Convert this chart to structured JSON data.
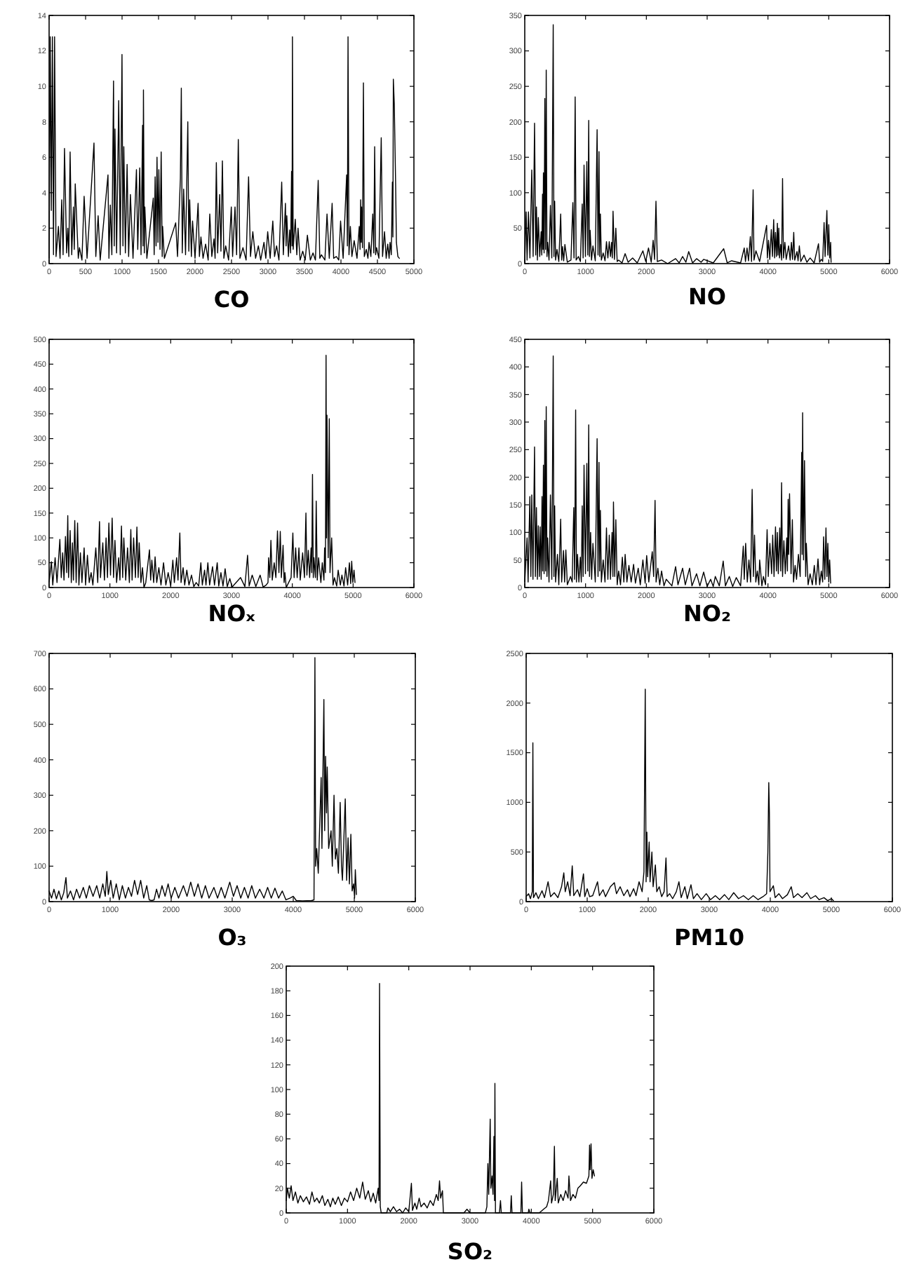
{
  "chart_data": [
    {
      "type": "line",
      "title": "CO",
      "color": "#000000",
      "xlim": [
        0,
        5000
      ],
      "xticks": [
        0,
        500,
        1000,
        1500,
        2000,
        2500,
        3000,
        3500,
        4000,
        4500,
        5000
      ],
      "ylim": [
        0,
        14
      ],
      "yticks": [
        0,
        2,
        4,
        6,
        8,
        10,
        12,
        14
      ],
      "x": [
        0,
        15,
        30,
        45,
        60,
        75,
        95,
        128,
        150,
        173,
        192,
        211,
        240,
        256,
        270,
        288,
        310,
        333,
        345,
        358,
        400,
        416,
        450,
        480,
        520,
        615,
        640,
        672,
        700,
        807,
        820,
        839,
        860,
        883,
        893,
        903,
        925,
        954,
        975,
        999,
        1012,
        1024,
        1045,
        1069,
        1090,
        1114,
        1150,
        1197,
        1215,
        1242,
        1260,
        1281,
        1287,
        1293,
        1305,
        1312,
        1340,
        1428,
        1440,
        1453,
        1466,
        1479,
        1492,
        1504,
        1520,
        1536,
        1550,
        1556,
        1580,
        1735,
        1760,
        1799,
        1812,
        1825,
        1844,
        1870,
        1901,
        1915,
        1927,
        1950,
        1966,
        2000,
        2042,
        2060,
        2081,
        2110,
        2145,
        2180,
        2202,
        2230,
        2260,
        2275,
        2292,
        2310,
        2337,
        2355,
        2375,
        2395,
        2420,
        2460,
        2497,
        2515,
        2548,
        2570,
        2593,
        2615,
        2657,
        2700,
        2734,
        2760,
        2792,
        2830,
        2868,
        2900,
        2945,
        2970,
        2996,
        3030,
        3066,
        3090,
        3118,
        3150,
        3188,
        3210,
        3239,
        3248,
        3258,
        3280,
        3297,
        3310,
        3323,
        3330,
        3335,
        3345,
        3374,
        3395,
        3412,
        3440,
        3476,
        3510,
        3540,
        3580,
        3617,
        3650,
        3688,
        3710,
        3732,
        3780,
        3809,
        3840,
        3879,
        3900,
        3937,
        3970,
        3995,
        4030,
        4078,
        4088,
        4097,
        4110,
        4129,
        4150,
        4181,
        4220,
        4251,
        4262,
        4270,
        4278,
        4283,
        4295,
        4308,
        4320,
        4347,
        4370,
        4385,
        4410,
        4436,
        4450,
        4462,
        4475,
        4488,
        4520,
        4552,
        4570,
        4597,
        4620,
        4641,
        4660,
        4673,
        4690,
        4705,
        4712,
        4718,
        4731,
        4750,
        4760,
        4780,
        4800
      ],
      "values": [
        0.3,
        12.8,
        3.0,
        12.8,
        0.5,
        12.8,
        0.4,
        2.1,
        0.3,
        3.6,
        0.5,
        6.5,
        0.6,
        2.0,
        0.4,
        6.3,
        0.5,
        3.2,
        0.8,
        4.5,
        0.3,
        0.9,
        0.2,
        3.8,
        0.3,
        6.8,
        0.4,
        2.7,
        0.2,
        5.0,
        0.3,
        3.3,
        0.5,
        10.3,
        1.0,
        7.6,
        0.6,
        9.2,
        0.5,
        11.8,
        1.0,
        6.6,
        0.6,
        5.6,
        0.4,
        3.9,
        0.3,
        5.3,
        0.8,
        5.4,
        0.5,
        7.8,
        1.0,
        9.8,
        0.6,
        3.2,
        0.3,
        3.7,
        0.5,
        4.9,
        1.0,
        6.0,
        1.2,
        5.3,
        0.8,
        6.3,
        0.4,
        2.1,
        0.3,
        2.3,
        0.4,
        4.8,
        9.9,
        0.6,
        4.2,
        0.5,
        8.0,
        0.7,
        3.6,
        0.4,
        2.4,
        0.3,
        3.4,
        0.4,
        1.5,
        0.3,
        1.1,
        0.2,
        2.8,
        0.4,
        1.4,
        0.3,
        5.7,
        0.6,
        3.9,
        0.7,
        5.8,
        0.3,
        1.0,
        0.2,
        3.2,
        0.4,
        3.2,
        0.5,
        7.0,
        0.3,
        0.9,
        0.2,
        4.9,
        0.4,
        1.8,
        0.3,
        1.0,
        0.2,
        1.2,
        0.3,
        1.8,
        0.3,
        2.4,
        0.4,
        1.0,
        0.2,
        4.6,
        0.5,
        3.4,
        1.0,
        2.7,
        0.4,
        1.9,
        0.6,
        5.2,
        1.0,
        12.8,
        0.8,
        2.5,
        0.5,
        2.0,
        0.2,
        0.7,
        0.2,
        1.6,
        0.2,
        0.6,
        0.2,
        4.7,
        0.3,
        0.5,
        0.2,
        2.8,
        0.3,
        3.4,
        0.3,
        0.4,
        0.2,
        2.4,
        0.3,
        5.0,
        1.0,
        12.8,
        0.5,
        2.1,
        0.4,
        1.3,
        0.3,
        2.1,
        0.8,
        3.6,
        1.2,
        3.2,
        0.9,
        10.2,
        0.4,
        0.8,
        0.3,
        1.2,
        0.4,
        2.8,
        0.6,
        6.6,
        0.5,
        0.9,
        0.3,
        7.1,
        0.4,
        1.8,
        0.3,
        1.1,
        0.3,
        1.2,
        0.5,
        4.6,
        1.5,
        10.4,
        9.0,
        4.3,
        1.2,
        0.4,
        0.3
      ]
    },
    {
      "type": "line",
      "title": "NO",
      "color": "#000000",
      "xlim": [
        0,
        6000
      ],
      "xticks": [
        0,
        1000,
        2000,
        3000,
        4000,
        5000,
        6000
      ],
      "ylim": [
        0,
        350
      ],
      "yticks": [
        0,
        50,
        100,
        150,
        200,
        250,
        300,
        350
      ],
      "x": [
        0,
        23,
        38,
        61,
        85,
        115,
        138,
        161,
        180,
        192,
        208,
        223,
        246,
        269,
        280,
        292,
        300,
        307,
        318,
        330,
        342,
        353,
        365,
        376,
        399,
        422,
        445,
        468,
        480,
        492,
        507,
        530,
        560,
        591,
        607,
        622,
        640,
        660,
        700,
        760,
        791,
        810,
        829,
        845,
        883,
        915,
        945,
        960,
        975,
        998,
        1021,
        1037,
        1052,
        1064,
        1075,
        1098,
        1121,
        1160,
        1190,
        1205,
        1221,
        1232,
        1244,
        1260,
        1290,
        1320,
        1344,
        1367,
        1390,
        1410,
        1429,
        1440,
        1452,
        1475,
        1498,
        1520,
        1544,
        1600,
        1651,
        1700,
        1774,
        1850,
        1943,
        1990,
        2035,
        2080,
        2112,
        2135,
        2158,
        2180,
        2250,
        2350,
        2481,
        2540,
        2596,
        2650,
        2696,
        2760,
        2826,
        2900,
        2942,
        3100,
        3272,
        3330,
        3402,
        3550,
        3610,
        3630,
        3656,
        3680,
        3710,
        3730,
        3756,
        3770,
        3802,
        3863,
        3978,
        3990,
        4009,
        4030,
        4055,
        4075,
        4094,
        4110,
        4124,
        4140,
        4155,
        4165,
        4178,
        4190,
        4209,
        4225,
        4240,
        4255,
        4278,
        4300,
        4340,
        4365,
        4386,
        4405,
        4424,
        4440,
        4478,
        4495,
        4516,
        4540,
        4593,
        4640,
        4693,
        4760,
        4831,
        4850,
        4877,
        4900,
        4923,
        4940,
        4969,
        4985,
        5000,
        5015,
        5031,
        5038
      ],
      "values": [
        2,
        73,
        5,
        73,
        8,
        132,
        10,
        198,
        12,
        80,
        5,
        65,
        10,
        45,
        12,
        98,
        20,
        128,
        15,
        233,
        20,
        273,
        10,
        30,
        5,
        82,
        8,
        337,
        10,
        88,
        5,
        20,
        3,
        70,
        5,
        24,
        4,
        27,
        2,
        5,
        86,
        8,
        235,
        5,
        10,
        3,
        84,
        8,
        139,
        10,
        144,
        12,
        202,
        10,
        47,
        5,
        25,
        4,
        189,
        12,
        158,
        10,
        70,
        5,
        15,
        4,
        31,
        8,
        31,
        10,
        30,
        8,
        74,
        6,
        50,
        3,
        5,
        1,
        14,
        2,
        8,
        1,
        18,
        3,
        22,
        2,
        33,
        6,
        88,
        3,
        5,
        0,
        7,
        1,
        10,
        2,
        17,
        1,
        7,
        2,
        6,
        1,
        21,
        1,
        4,
        1,
        22,
        3,
        22,
        4,
        38,
        3,
        104,
        5,
        18,
        3,
        54,
        8,
        33,
        6,
        48,
        10,
        62,
        8,
        44,
        10,
        57,
        12,
        50,
        8,
        27,
        5,
        120,
        8,
        30,
        6,
        25,
        5,
        30,
        6,
        44,
        5,
        17,
        4,
        25,
        3,
        12,
        2,
        8,
        1,
        28,
        2,
        6,
        3,
        58,
        10,
        75,
        12,
        55,
        8,
        30,
        2
      ]
    },
    {
      "type": "line",
      "title": "NOₓ",
      "color": "#000000",
      "xlim": [
        0,
        6000
      ],
      "xticks": [
        0,
        1000,
        2000,
        3000,
        4000,
        5000,
        6000
      ],
      "ylim": [
        0,
        500
      ],
      "yticks": [
        0,
        50,
        100,
        150,
        200,
        250,
        300,
        350,
        400,
        450,
        500
      ],
      "x": [
        0,
        38,
        60,
        99,
        130,
        177,
        200,
        223,
        245,
        269,
        290,
        307,
        320,
        346,
        365,
        384,
        400,
        422,
        445,
        468,
        490,
        515,
        540,
        576,
        600,
        630,
        660,
        691,
        720,
        768,
        800,
        829,
        845,
        883,
        910,
        937,
        960,
        983,
        1010,
        1037,
        1060,
        1083,
        1110,
        1144,
        1165,
        1190,
        1210,
        1229,
        1260,
        1290,
        1320,
        1344,
        1365,
        1390,
        1420,
        1444,
        1465,
        1482,
        1510,
        1536,
        1560,
        1590,
        1651,
        1670,
        1690,
        1720,
        1743,
        1770,
        1805,
        1840,
        1882,
        1920,
        1958,
        2000,
        2035,
        2060,
        2097,
        2120,
        2150,
        2170,
        2204,
        2230,
        2265,
        2300,
        2342,
        2380,
        2419,
        2460,
        2496,
        2520,
        2557,
        2580,
        2611,
        2640,
        2688,
        2720,
        2765,
        2790,
        2826,
        2860,
        2895,
        2930,
        2972,
        3010,
        3149,
        3220,
        3264,
        3290,
        3340,
        3400,
        3471,
        3520,
        3571,
        3600,
        3610,
        3630,
        3648,
        3670,
        3702,
        3730,
        3756,
        3780,
        3802,
        3820,
        3848,
        3865,
        3879,
        3900,
        3940,
        3980,
        4009,
        4030,
        4055,
        4080,
        4109,
        4130,
        4170,
        4200,
        4224,
        4240,
        4263,
        4285,
        4309,
        4320,
        4332,
        4345,
        4355,
        4380,
        4393,
        4410,
        4432,
        4470,
        4493,
        4520,
        4531,
        4545,
        4555,
        4562,
        4570,
        4590,
        4608,
        4620,
        4647,
        4670,
        4693,
        4730,
        4754,
        4790,
        4816,
        4850,
        4877,
        4910,
        4939,
        4960,
        4977,
        4995,
        5015,
        5031
      ],
      "values": [
        10,
        52,
        5,
        60,
        10,
        97,
        20,
        70,
        15,
        103,
        30,
        145,
        20,
        115,
        10,
        90,
        15,
        135,
        10,
        130,
        5,
        70,
        10,
        80,
        5,
        65,
        10,
        30,
        5,
        80,
        10,
        133,
        20,
        90,
        15,
        100,
        20,
        130,
        25,
        140,
        20,
        95,
        10,
        60,
        15,
        124,
        20,
        100,
        15,
        80,
        10,
        117,
        15,
        100,
        20,
        122,
        20,
        90,
        10,
        40,
        0,
        10,
        76,
        15,
        55,
        10,
        62,
        10,
        40,
        5,
        50,
        5,
        30,
        3,
        55,
        10,
        60,
        15,
        110,
        10,
        40,
        5,
        35,
        5,
        25,
        2,
        10,
        3,
        50,
        5,
        35,
        5,
        50,
        5,
        42,
        5,
        50,
        3,
        30,
        3,
        38,
        2,
        18,
        1,
        20,
        2,
        65,
        3,
        25,
        2,
        25,
        1,
        5,
        10,
        60,
        20,
        95,
        15,
        50,
        20,
        114,
        30,
        113,
        20,
        85,
        10,
        30,
        0,
        10,
        20,
        110,
        20,
        80,
        20,
        80,
        15,
        70,
        20,
        150,
        25,
        75,
        20,
        80,
        30,
        228,
        20,
        60,
        20,
        174,
        15,
        60,
        10,
        50,
        15,
        80,
        30,
        468,
        100,
        347,
        60,
        340,
        30,
        100,
        5,
        20,
        3,
        35,
        5,
        25,
        3,
        40,
        5,
        50,
        8,
        53,
        10,
        35,
        10
      ]
    },
    {
      "type": "line",
      "title": "NO₂",
      "color": "#000000",
      "xlim": [
        0,
        6000
      ],
      "xticks": [
        0,
        1000,
        2000,
        3000,
        4000,
        5000,
        6000
      ],
      "ylim": [
        0,
        450
      ],
      "yticks": [
        0,
        50,
        100,
        150,
        200,
        250,
        300,
        350,
        400,
        450
      ],
      "x": [
        0,
        38,
        55,
        84,
        100,
        115,
        135,
        161,
        175,
        192,
        208,
        223,
        240,
        253,
        270,
        284,
        295,
        307,
        318,
        330,
        342,
        353,
        365,
        376,
        399,
        422,
        445,
        468,
        480,
        492,
        507,
        538,
        560,
        591,
        607,
        637,
        655,
        676,
        700,
        753,
        780,
        806,
        820,
        837,
        850,
        868,
        890,
        914,
        930,
        945,
        960,
        975,
        998,
        1021,
        1037,
        1052,
        1065,
        1083,
        1100,
        1121,
        1160,
        1190,
        1205,
        1221,
        1232,
        1244,
        1260,
        1290,
        1320,
        1344,
        1367,
        1390,
        1410,
        1436,
        1450,
        1459,
        1480,
        1498,
        1520,
        1544,
        1575,
        1605,
        1630,
        1651,
        1680,
        1713,
        1750,
        1790,
        1820,
        1866,
        1900,
        1943,
        1980,
        2005,
        2040,
        2097,
        2120,
        2143,
        2160,
        2189,
        2220,
        2250,
        2290,
        2327,
        2420,
        2481,
        2520,
        2596,
        2640,
        2711,
        2750,
        2826,
        2880,
        2942,
        3000,
        3057,
        3100,
        3134,
        3200,
        3264,
        3300,
        3364,
        3420,
        3479,
        3550,
        3594,
        3610,
        3633,
        3660,
        3687,
        3715,
        3740,
        3760,
        3779,
        3800,
        3825,
        3850,
        3863,
        3900,
        3925,
        3960,
        3986,
        4005,
        4032,
        4060,
        4078,
        4100,
        4124,
        4140,
        4155,
        4170,
        4194,
        4210,
        4224,
        4240,
        4262,
        4285,
        4309,
        4320,
        4332,
        4340,
        4355,
        4380,
        4401,
        4420,
        4447,
        4470,
        4501,
        4530,
        4555,
        4562,
        4570,
        4585,
        4601,
        4620,
        4631,
        4660,
        4693,
        4730,
        4762,
        4790,
        4823,
        4850,
        4877,
        4900,
        4915,
        4935,
        4954,
        4970,
        4985,
        5000,
        5015,
        5031
      ],
      "values": [
        10,
        90,
        10,
        165,
        20,
        168,
        15,
        255,
        20,
        145,
        15,
        112,
        20,
        110,
        15,
        165,
        30,
        222,
        25,
        303,
        30,
        328,
        20,
        90,
        10,
        168,
        15,
        420,
        20,
        148,
        10,
        60,
        5,
        124,
        10,
        67,
        10,
        68,
        5,
        20,
        10,
        145,
        15,
        322,
        10,
        60,
        10,
        55,
        10,
        148,
        20,
        222,
        25,
        225,
        30,
        295,
        20,
        100,
        15,
        80,
        10,
        270,
        20,
        227,
        30,
        140,
        10,
        50,
        10,
        108,
        15,
        95,
        15,
        100,
        20,
        155,
        20,
        123,
        5,
        30,
        5,
        55,
        10,
        60,
        10,
        40,
        10,
        42,
        8,
        35,
        5,
        50,
        8,
        58,
        10,
        65,
        20,
        158,
        10,
        35,
        5,
        30,
        3,
        15,
        3,
        38,
        5,
        35,
        5,
        35,
        3,
        25,
        3,
        28,
        2,
        15,
        2,
        20,
        3,
        48,
        3,
        20,
        2,
        18,
        3,
        75,
        15,
        80,
        10,
        50,
        10,
        178,
        20,
        95,
        10,
        30,
        5,
        50,
        3,
        20,
        5,
        105,
        20,
        80,
        25,
        95,
        20,
        110,
        30,
        100,
        25,
        108,
        30,
        190,
        20,
        85,
        25,
        90,
        30,
        160,
        60,
        170,
        25,
        123,
        10,
        40,
        15,
        60,
        20,
        245,
        60,
        317,
        50,
        230,
        20,
        80,
        5,
        25,
        5,
        40,
        5,
        52,
        5,
        30,
        10,
        92,
        15,
        108,
        20,
        80,
        10,
        50,
        8
      ]
    },
    {
      "type": "line",
      "title": "O₃",
      "color": "#000000",
      "xlim": [
        0,
        6000
      ],
      "xticks": [
        0,
        1000,
        2000,
        3000,
        4000,
        5000,
        6000
      ],
      "ylim": [
        0,
        700
      ],
      "yticks": [
        0,
        100,
        200,
        300,
        400,
        500,
        600,
        700
      ],
      "x": [
        0,
        40,
        80,
        120,
        160,
        200,
        240,
        276,
        300,
        350,
        400,
        450,
        500,
        560,
        610,
        660,
        720,
        780,
        830,
        880,
        920,
        946,
        970,
        1010,
        1050,
        1100,
        1150,
        1200,
        1250,
        1300,
        1350,
        1400,
        1450,
        1500,
        1550,
        1600,
        1640,
        1680,
        1720,
        1760,
        1800,
        1850,
        1900,
        1950,
        2000,
        2060,
        2120,
        2200,
        2260,
        2320,
        2380,
        2440,
        2500,
        2560,
        2620,
        2700,
        2760,
        2820,
        2880,
        2960,
        3020,
        3080,
        3140,
        3200,
        3260,
        3320,
        3380,
        3450,
        3520,
        3580,
        3640,
        3700,
        3760,
        3820,
        3880,
        3950,
        4000,
        4050,
        4150,
        4300,
        4340,
        4355,
        4367,
        4385,
        4410,
        4457,
        4470,
        4502,
        4515,
        4530,
        4545,
        4557,
        4580,
        4620,
        4640,
        4668,
        4690,
        4714,
        4740,
        4769,
        4790,
        4806,
        4852,
        4875,
        4898,
        4920,
        4944,
        4965,
        4989,
        5005,
        5017,
        5035
      ],
      "values": [
        30,
        10,
        35,
        8,
        30,
        5,
        25,
        68,
        10,
        30,
        5,
        35,
        10,
        40,
        10,
        45,
        15,
        45,
        10,
        50,
        15,
        85,
        20,
        60,
        10,
        50,
        5,
        45,
        10,
        40,
        15,
        60,
        20,
        60,
        10,
        45,
        5,
        3,
        5,
        35,
        10,
        45,
        15,
        50,
        10,
        40,
        10,
        45,
        15,
        55,
        15,
        50,
        10,
        45,
        10,
        40,
        10,
        40,
        10,
        55,
        15,
        45,
        10,
        40,
        10,
        45,
        10,
        35,
        10,
        40,
        10,
        38,
        10,
        30,
        5,
        10,
        15,
        3,
        2,
        3,
        5,
        688,
        100,
        150,
        80,
        350,
        150,
        570,
        200,
        410,
        250,
        380,
        150,
        200,
        100,
        300,
        120,
        150,
        80,
        280,
        100,
        60,
        290,
        60,
        180,
        50,
        190,
        30,
        50,
        10,
        90,
        20
      ]
    },
    {
      "type": "line",
      "title": "PM10",
      "color": "#000000",
      "xlim": [
        0,
        6000
      ],
      "xticks": [
        0,
        1000,
        2000,
        3000,
        4000,
        5000,
        6000
      ],
      "ylim": [
        0,
        2500
      ],
      "yticks": [
        0,
        500,
        1000,
        1500,
        2000,
        2500
      ],
      "x": [
        0,
        40,
        70,
        100,
        110,
        120,
        160,
        200,
        260,
        300,
        359,
        400,
        460,
        520,
        580,
        617,
        640,
        680,
        720,
        755,
        780,
        840,
        880,
        939,
        960,
        1000,
        1040,
        1090,
        1169,
        1200,
        1260,
        1300,
        1380,
        1445,
        1480,
        1540,
        1600,
        1660,
        1700,
        1760,
        1800,
        1850,
        1900,
        1930,
        1951,
        1965,
        1978,
        1990,
        2015,
        2030,
        2060,
        2080,
        2117,
        2140,
        2180,
        2220,
        2260,
        2291,
        2310,
        2350,
        2400,
        2460,
        2503,
        2540,
        2600,
        2640,
        2700,
        2740,
        2800,
        2870,
        2950,
        3020,
        3100,
        3170,
        3250,
        3320,
        3400,
        3480,
        3560,
        3640,
        3720,
        3800,
        3880,
        3940,
        3960,
        3975,
        3985,
        3995,
        4050,
        4080,
        4140,
        4200,
        4280,
        4343,
        4380,
        4450,
        4520,
        4600,
        4660,
        4740,
        4800,
        4880,
        4940,
        5000,
        5033
      ],
      "values": [
        50,
        80,
        30,
        100,
        1600,
        40,
        90,
        30,
        110,
        40,
        200,
        50,
        90,
        40,
        150,
        290,
        100,
        200,
        60,
        360,
        60,
        120,
        50,
        280,
        50,
        130,
        50,
        60,
        200,
        60,
        120,
        50,
        150,
        190,
        80,
        150,
        60,
        120,
        50,
        130,
        60,
        200,
        100,
        300,
        2140,
        200,
        700,
        250,
        600,
        200,
        500,
        150,
        370,
        100,
        150,
        50,
        100,
        440,
        50,
        80,
        30,
        100,
        200,
        40,
        150,
        30,
        170,
        30,
        80,
        20,
        80,
        20,
        60,
        20,
        70,
        20,
        90,
        30,
        60,
        20,
        60,
        20,
        50,
        80,
        500,
        1200,
        900,
        100,
        160,
        40,
        80,
        30,
        70,
        150,
        40,
        80,
        40,
        90,
        30,
        60,
        20,
        40,
        10,
        30,
        10
      ]
    },
    {
      "type": "line",
      "title": "SO₂",
      "color": "#000000",
      "xlim": [
        0,
        6000
      ],
      "xticks": [
        0,
        1000,
        2000,
        3000,
        4000,
        5000,
        6000
      ],
      "ylim": [
        0,
        200
      ],
      "yticks": [
        0,
        20,
        40,
        60,
        80,
        100,
        120,
        140,
        160,
        180,
        200
      ],
      "x": [
        0,
        20,
        50,
        80,
        110,
        150,
        190,
        230,
        280,
        330,
        380,
        420,
        460,
        500,
        540,
        590,
        630,
        680,
        720,
        760,
        800,
        850,
        900,
        950,
        1000,
        1050,
        1100,
        1150,
        1200,
        1247,
        1290,
        1340,
        1380,
        1420,
        1460,
        1500,
        1515,
        1523,
        1535,
        1550,
        1640,
        1660,
        1700,
        1750,
        1800,
        1850,
        1900,
        1950,
        2000,
        2043,
        2060,
        2100,
        2130,
        2170,
        2200,
        2250,
        2300,
        2350,
        2400,
        2450,
        2480,
        2502,
        2520,
        2550,
        2565,
        2900,
        2950,
        3000,
        3250,
        3275,
        3291,
        3305,
        3329,
        3340,
        3360,
        3375,
        3390,
        3400,
        3406,
        3415,
        3480,
        3497,
        3510,
        3660,
        3673,
        3685,
        3830,
        3842,
        3855,
        3950,
        3960,
        3980,
        4130,
        4200,
        4250,
        4280,
        4316,
        4330,
        4360,
        4377,
        4390,
        4423,
        4440,
        4480,
        4520,
        4560,
        4600,
        4614,
        4640,
        4680,
        4720,
        4760,
        4800,
        4850,
        4900,
        4940,
        4951,
        4960,
        4975,
        4990,
        5010,
        5030
      ],
      "values": [
        10,
        20,
        12,
        22,
        10,
        17,
        8,
        14,
        9,
        13,
        7,
        17,
        9,
        12,
        8,
        14,
        6,
        11,
        5,
        12,
        7,
        13,
        6,
        12,
        9,
        17,
        10,
        20,
        12,
        25,
        11,
        18,
        9,
        16,
        8,
        20,
        10,
        186,
        5,
        0,
        0,
        4,
        1,
        5,
        1,
        3,
        0,
        4,
        1,
        24,
        2,
        8,
        3,
        12,
        5,
        8,
        4,
        10,
        6,
        15,
        10,
        26,
        12,
        18,
        0,
        0,
        3,
        0,
        0,
        5,
        40,
        15,
        76,
        20,
        30,
        15,
        62,
        10,
        105,
        0,
        0,
        10,
        0,
        0,
        14,
        0,
        0,
        25,
        0,
        0,
        3,
        0,
        0,
        3,
        5,
        10,
        26,
        8,
        15,
        54,
        10,
        28,
        8,
        15,
        10,
        18,
        12,
        30,
        10,
        15,
        12,
        20,
        22,
        25,
        24,
        30,
        55,
        35,
        56,
        28,
        35,
        30
      ]
    }
  ]
}
